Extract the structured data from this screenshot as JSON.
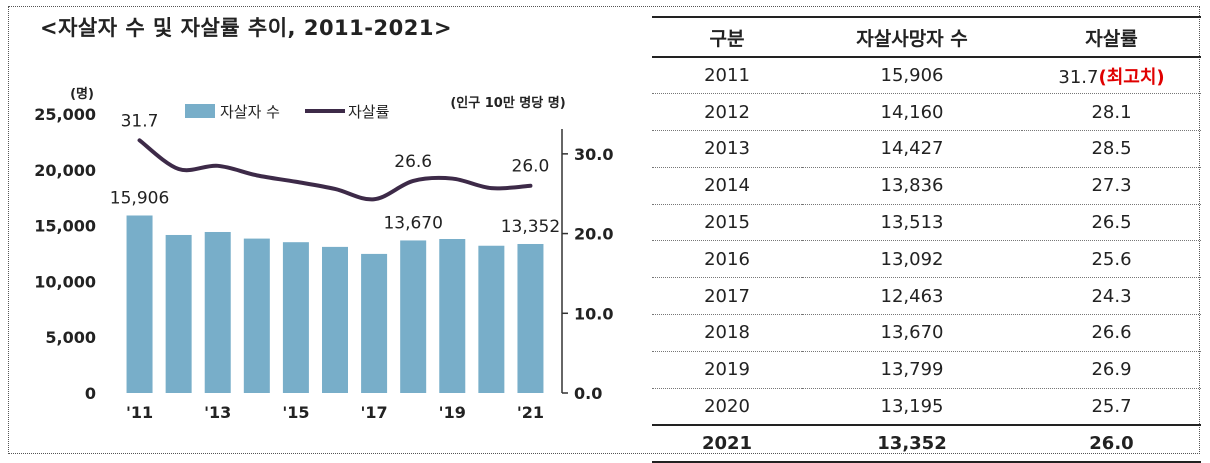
{
  "chart": {
    "title": "<자살자 수 및 자살률 추이, 2011-2021>",
    "y_left_unit": "(명)",
    "y_right_unit": "(인구 10만 명당 명)",
    "legend": [
      {
        "label": "자살자 수",
        "kind": "bar",
        "color": "#78aec9"
      },
      {
        "label": "자살률",
        "kind": "line",
        "color": "#3d2a48"
      }
    ]
  },
  "chart_data": {
    "type": "bar",
    "categories": [
      "2011",
      "2012",
      "2013",
      "2014",
      "2015",
      "2016",
      "2017",
      "2018",
      "2019",
      "2020",
      "2021"
    ],
    "x_tick_labels": [
      "'11",
      "",
      "'13",
      "",
      "'15",
      "",
      "'17",
      "",
      "'19",
      "",
      "'21"
    ],
    "series": [
      {
        "name": "자살자 수",
        "type": "bar",
        "axis": "left",
        "values": [
          15906,
          14160,
          14427,
          13836,
          13513,
          13092,
          12463,
          13670,
          13799,
          13195,
          13352
        ],
        "data_labels": {
          "0": "15,906",
          "7": "13,670",
          "10": "13,352"
        }
      },
      {
        "name": "자살률",
        "type": "line",
        "axis": "right",
        "values": [
          31.7,
          28.1,
          28.5,
          27.3,
          26.5,
          25.6,
          24.3,
          26.6,
          26.9,
          25.7,
          26.0
        ],
        "data_labels": {
          "0": "31.7",
          "7": "26.6",
          "10": "26.0"
        }
      }
    ],
    "y_left": {
      "ylim": [
        0,
        25000
      ],
      "ticks": [
        "0",
        "5,000",
        "10,000",
        "15,000",
        "20,000",
        "25,000"
      ]
    },
    "y_right": {
      "ylim": [
        0,
        35
      ],
      "ticks": [
        "0.0",
        "10.0",
        "20.0",
        "30.0"
      ]
    },
    "grid": false,
    "legend_position": "top"
  },
  "table": {
    "headers": [
      "구분",
      "자살사망자 수",
      "자살률"
    ],
    "rows": [
      {
        "year": "2011",
        "count": "15,906",
        "rate": "31.7",
        "note": "(최고치)"
      },
      {
        "year": "2012",
        "count": "14,160",
        "rate": "28.1"
      },
      {
        "year": "2013",
        "count": "14,427",
        "rate": "28.5"
      },
      {
        "year": "2014",
        "count": "13,836",
        "rate": "27.3"
      },
      {
        "year": "2015",
        "count": "13,513",
        "rate": "26.5"
      },
      {
        "year": "2016",
        "count": "13,092",
        "rate": "25.6"
      },
      {
        "year": "2017",
        "count": "12,463",
        "rate": "24.3"
      },
      {
        "year": "2018",
        "count": "13,670",
        "rate": "26.6"
      },
      {
        "year": "2019",
        "count": "13,799",
        "rate": "26.9"
      },
      {
        "year": "2020",
        "count": "13,195",
        "rate": "25.7"
      },
      {
        "year": "2021",
        "count": "13,352",
        "rate": "26.0"
      }
    ]
  }
}
